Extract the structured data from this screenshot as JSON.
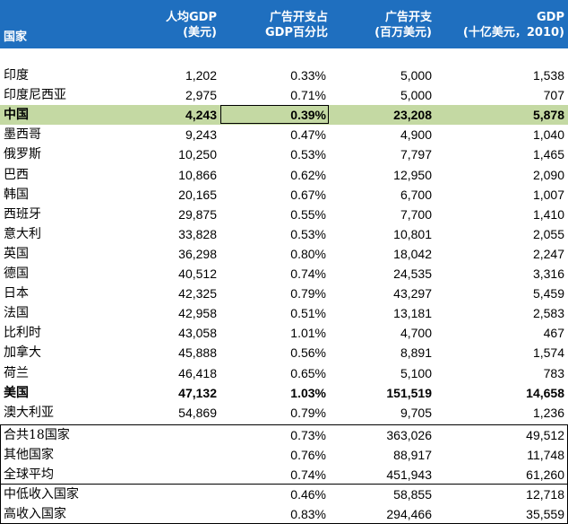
{
  "header": {
    "country": "国家",
    "gdp_per_capita": [
      "人均GDP",
      "(美元)"
    ],
    "ad_share": [
      "广告开支占",
      "GDP百分比"
    ],
    "ad_spend": [
      "广告开支",
      "(百万美元)"
    ],
    "gdp": [
      "GDP",
      "(十亿美元，2010)"
    ]
  },
  "rows": [
    {
      "country": "印度",
      "gdp_pc": "1,202",
      "pct": "0.33%",
      "ad": "5,000",
      "gdp": "1,538"
    },
    {
      "country": "印度尼西亚",
      "gdp_pc": "2,975",
      "pct": "0.71%",
      "ad": "5,000",
      "gdp": "707"
    },
    {
      "country": "中国",
      "gdp_pc": "4,243",
      "pct": "0.39%",
      "ad": "23,208",
      "gdp": "5,878"
    },
    {
      "country": "墨西哥",
      "gdp_pc": "9,243",
      "pct": "0.47%",
      "ad": "4,900",
      "gdp": "1,040"
    },
    {
      "country": "俄罗斯",
      "gdp_pc": "10,250",
      "pct": "0.53%",
      "ad": "7,797",
      "gdp": "1,465"
    },
    {
      "country": "巴西",
      "gdp_pc": "10,866",
      "pct": "0.62%",
      "ad": "12,950",
      "gdp": "2,090"
    },
    {
      "country": "韩国",
      "gdp_pc": "20,165",
      "pct": "0.67%",
      "ad": "6,700",
      "gdp": "1,007"
    },
    {
      "country": "西班牙",
      "gdp_pc": "29,875",
      "pct": "0.55%",
      "ad": "7,700",
      "gdp": "1,410"
    },
    {
      "country": "意大利",
      "gdp_pc": "33,828",
      "pct": "0.53%",
      "ad": "10,801",
      "gdp": "2,055"
    },
    {
      "country": "英国",
      "gdp_pc": "36,298",
      "pct": "0.80%",
      "ad": "18,042",
      "gdp": "2,247"
    },
    {
      "country": "德国",
      "gdp_pc": "40,512",
      "pct": "0.74%",
      "ad": "24,535",
      "gdp": "3,316"
    },
    {
      "country": "日本",
      "gdp_pc": "42,325",
      "pct": "0.79%",
      "ad": "43,297",
      "gdp": "5,459"
    },
    {
      "country": "法国",
      "gdp_pc": "42,958",
      "pct": "0.51%",
      "ad": "13,181",
      "gdp": "2,583"
    },
    {
      "country": "比利时",
      "gdp_pc": "43,058",
      "pct": "1.01%",
      "ad": "4,700",
      "gdp": "467"
    },
    {
      "country": "加拿大",
      "gdp_pc": "45,888",
      "pct": "0.56%",
      "ad": "8,891",
      "gdp": "1,574"
    },
    {
      "country": "荷兰",
      "gdp_pc": "46,418",
      "pct": "0.65%",
      "ad": "5,100",
      "gdp": "783"
    },
    {
      "country": "美国",
      "gdp_pc": "47,132",
      "pct": "1.03%",
      "ad": "151,519",
      "gdp": "14,658"
    },
    {
      "country": "澳大利亚",
      "gdp_pc": "54,869",
      "pct": "0.79%",
      "ad": "9,705",
      "gdp": "1,236"
    }
  ],
  "totals": [
    {
      "country": "合共18国家",
      "gdp_pc": "",
      "pct": "0.73%",
      "ad": "363,026",
      "gdp": "49,512"
    },
    {
      "country": "其他国家",
      "gdp_pc": "",
      "pct": "0.76%",
      "ad": "88,917",
      "gdp": "11,748"
    },
    {
      "country": "全球平均",
      "gdp_pc": "",
      "pct": "0.74%",
      "ad": "451,943",
      "gdp": "61,260"
    }
  ],
  "income": [
    {
      "country": "中低收入国家",
      "gdp_pc": "",
      "pct": "0.46%",
      "ad": "58,855",
      "gdp": "12,718"
    },
    {
      "country": "高收入国家",
      "gdp_pc": "",
      "pct": "0.83%",
      "ad": "294,466",
      "gdp": "35,559"
    }
  ],
  "colors": {
    "header_bg": "#1f6fbf",
    "china_highlight": "#c4d9a3"
  }
}
